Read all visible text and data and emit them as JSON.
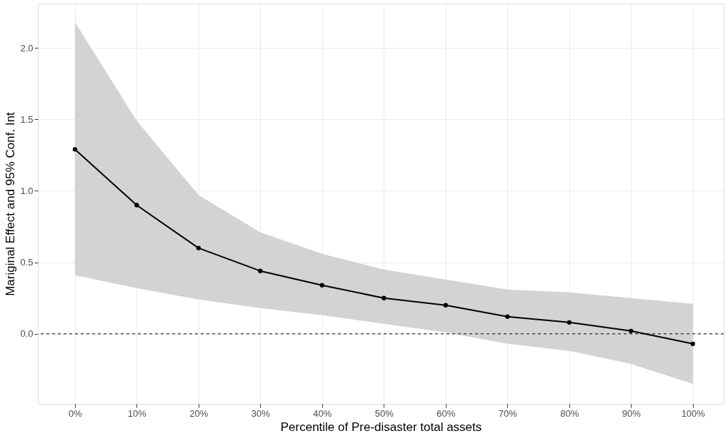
{
  "chart_data": {
    "type": "line",
    "xlabel": "Percentile of Pre-disaster total assets",
    "ylabel": "Mariginal Effect and 95% Conf. Int",
    "x": [
      0,
      10,
      20,
      30,
      40,
      50,
      60,
      70,
      80,
      90,
      100
    ],
    "series": [
      {
        "color": "#000000",
        "values": [
          1.29,
          0.9,
          0.6,
          0.44,
          0.34,
          0.25,
          0.2,
          0.12,
          0.08,
          0.02,
          -0.07
        ],
        "lower": [
          0.41,
          0.32,
          0.24,
          0.18,
          0.13,
          0.07,
          0.01,
          -0.07,
          -0.12,
          -0.21,
          -0.35
        ],
        "upper": [
          2.18,
          1.49,
          0.97,
          0.71,
          0.56,
          0.45,
          0.38,
          0.31,
          0.29,
          0.25,
          0.21
        ]
      }
    ],
    "xlim": [
      -6,
      105
    ],
    "ylim": [
      -0.49,
      2.31
    ],
    "xticks": [
      {
        "value": 0,
        "label": "0%"
      },
      {
        "value": 10,
        "label": "10%"
      },
      {
        "value": 20,
        "label": "20%"
      },
      {
        "value": 30,
        "label": "30%"
      },
      {
        "value": 40,
        "label": "40%"
      },
      {
        "value": 50,
        "label": "50%"
      },
      {
        "value": 60,
        "label": "60%"
      },
      {
        "value": 70,
        "label": "70%"
      },
      {
        "value": 80,
        "label": "80%"
      },
      {
        "value": 90,
        "label": "90%"
      },
      {
        "value": 100,
        "label": "100%"
      }
    ],
    "yticks": [
      {
        "value": 0,
        "label": "0.0"
      },
      {
        "value": 0.5,
        "label": "0.5"
      },
      {
        "value": 1,
        "label": "1.0"
      },
      {
        "value": 1.5,
        "label": "1.5"
      },
      {
        "value": 2,
        "label": "2.0"
      }
    ],
    "ref_lines": [
      {
        "axis": "y",
        "value": 0,
        "label": null,
        "color": "#000000",
        "line_style": "dashed"
      }
    ],
    "grid": true,
    "marker": "circle",
    "line_style": "solid"
  }
}
